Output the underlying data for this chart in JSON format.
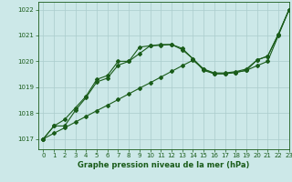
{
  "title": "Graphe pression niveau de la mer (hPa)",
  "background_color": "#cce8e8",
  "grid_color": "#aacccc",
  "line_color": "#1a5c1a",
  "marker_color": "#1a5c1a",
  "xlim": [
    -0.5,
    23
  ],
  "ylim": [
    1016.6,
    1022.3
  ],
  "yticks": [
    1017,
    1018,
    1019,
    1020,
    1021,
    1022
  ],
  "xticks": [
    0,
    1,
    2,
    3,
    4,
    5,
    6,
    7,
    8,
    9,
    10,
    11,
    12,
    13,
    14,
    15,
    16,
    17,
    18,
    19,
    20,
    21,
    22,
    23
  ],
  "series": [
    [
      1017.0,
      1017.22,
      1017.43,
      1017.65,
      1017.87,
      1018.09,
      1018.3,
      1018.52,
      1018.74,
      1018.96,
      1019.17,
      1019.39,
      1019.61,
      1019.83,
      1020.04,
      1019.7,
      1019.52,
      1019.52,
      1019.57,
      1019.65,
      1019.83,
      1020.0,
      1021.0,
      1022.0
    ],
    [
      1017.0,
      1017.5,
      1017.5,
      1018.1,
      1018.6,
      1019.2,
      1019.35,
      1019.85,
      1020.0,
      1020.3,
      1020.6,
      1020.62,
      1020.65,
      1020.5,
      1020.1,
      1019.65,
      1019.52,
      1019.52,
      1019.57,
      1019.65,
      1020.05,
      1020.2,
      1021.05,
      1022.0
    ],
    [
      1017.0,
      1017.5,
      1017.75,
      1018.2,
      1018.65,
      1019.3,
      1019.45,
      1020.0,
      1020.0,
      1020.55,
      1020.6,
      1020.65,
      1020.65,
      1020.45,
      1020.1,
      1019.7,
      1019.55,
      1019.55,
      1019.6,
      1019.7,
      1020.05,
      1020.2,
      1021.05,
      1022.0
    ]
  ],
  "title_fontsize": 6.0,
  "tick_fontsize": 5.0,
  "xlabel_fontsize": 5.0,
  "marker_size": 2.0,
  "line_width": 0.8
}
